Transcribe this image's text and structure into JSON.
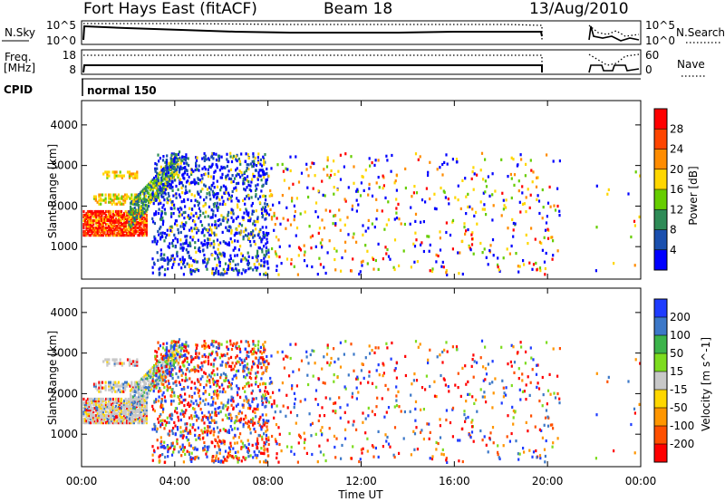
{
  "header": {
    "title": "Fort Hays East (fitACF)",
    "beam": "Beam 18",
    "date": "13/Aug/2010"
  },
  "strips": {
    "nsky_label": "N.Sky",
    "nsky_ticks": [
      "10^5",
      "10^0"
    ],
    "nsearch_label": "N.Search",
    "nsearch_ticks": [
      "10^5",
      "10^0"
    ],
    "freq_label": "Freq.",
    "freq_unit": "[MHz]",
    "freq_ticks": [
      "18",
      "8"
    ],
    "nave_label": "Nave",
    "nave_ticks": [
      "60",
      "0"
    ],
    "cpid_label": "CPID",
    "cpid_value": "normal 150"
  },
  "colors": {
    "power": [
      "#0000ff",
      "#1a4fae",
      "#2e8b57",
      "#66cd00",
      "#ffd700",
      "#ff8c00",
      "#ff4500",
      "#ff0000"
    ],
    "velocity": [
      "#1e3cff",
      "#3c78c8",
      "#3cb44b",
      "#7ddc1f",
      "#c8c8c8",
      "#ffd700",
      "#ff9600",
      "#ff5000",
      "#ff0000"
    ]
  },
  "chart_data": [
    {
      "type": "heatmap",
      "name": "power",
      "xlabel": "Time UT",
      "ylabel": "Slant Range [km]",
      "ylim": [
        200,
        4600
      ],
      "xlim": [
        "00:00",
        "00:00 (+24h)"
      ],
      "x_ticks": [
        "00:00",
        "04:00",
        "08:00",
        "12:00",
        "16:00",
        "20:00",
        "00:00"
      ],
      "y_ticks": [
        "1000",
        "2000",
        "3000",
        "4000"
      ],
      "colorbar": {
        "label": "Power [dB]",
        "ticks": [
          "4",
          "8",
          "12",
          "16",
          "20",
          "24",
          "28"
        ],
        "range": [
          0,
          30
        ]
      },
      "features": [
        {
          "desc": "dense high-power backscatter",
          "time_range_h": [
            0.0,
            2.8
          ],
          "range_km": [
            1300,
            1900
          ],
          "value_db": 24
        },
        {
          "desc": "rising medium-power band",
          "time_range_h": [
            2.0,
            4.0
          ],
          "range_km": [
            1700,
            3000
          ],
          "value_db": 12
        },
        {
          "desc": "scattered low-power echoes",
          "time_range_h": [
            3.0,
            8.0
          ],
          "range_km": [
            300,
            3300
          ],
          "value_db": 6
        },
        {
          "desc": "sparse scattered echoes",
          "time_range_h": [
            8.0,
            20.5
          ],
          "range_km": [
            300,
            3300
          ],
          "value_db": 10
        }
      ]
    },
    {
      "type": "heatmap",
      "name": "velocity",
      "xlabel": "Time UT",
      "ylabel": "Slant Range [km]",
      "ylim": [
        200,
        4600
      ],
      "xlim": [
        "00:00",
        "00:00 (+24h)"
      ],
      "x_ticks": [
        "00:00",
        "04:00",
        "08:00",
        "12:00",
        "16:00",
        "20:00",
        "00:00"
      ],
      "y_ticks": [
        "1000",
        "2000",
        "3000",
        "4000"
      ],
      "colorbar": {
        "label": "Velocity [m s^-1]",
        "ticks": [
          "200",
          "100",
          "50",
          "15",
          "-15",
          "-50",
          "-100",
          "-200"
        ],
        "range": [
          -250,
          250
        ]
      },
      "features": [
        {
          "desc": "low-velocity (ground scatter) region",
          "time_range_h": [
            0.0,
            4.0
          ],
          "range_km": [
            1300,
            2800
          ],
          "value_ms": 0
        },
        {
          "desc": "mixed-velocity scatter",
          "time_range_h": [
            3.0,
            8.0
          ],
          "range_km": [
            300,
            3300
          ],
          "value_ms": -80
        },
        {
          "desc": "sparse mixed-velocity echoes",
          "time_range_h": [
            8.0,
            20.5
          ],
          "range_km": [
            300,
            3300
          ],
          "value_ms": 60
        }
      ]
    }
  ]
}
